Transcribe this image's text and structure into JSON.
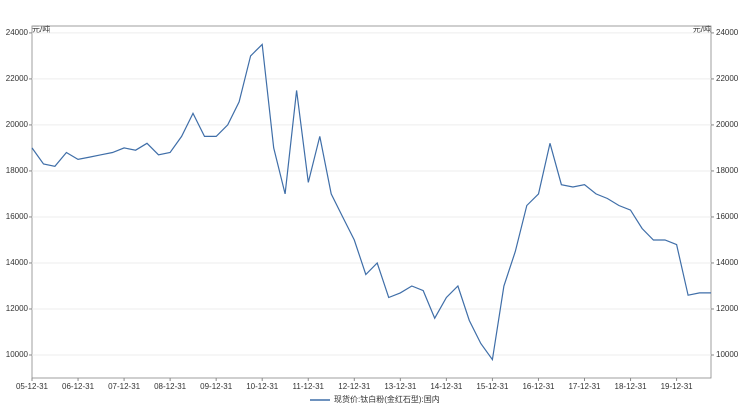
{
  "chart_data": {
    "type": "line",
    "y_unit": "元/吨",
    "y2_unit": "元/吨",
    "x": [
      "05-12-31",
      "06-03-31",
      "06-06-30",
      "06-09-30",
      "06-12-31",
      "07-03-31",
      "07-06-30",
      "07-09-30",
      "07-12-31",
      "08-03-31",
      "08-06-30",
      "08-09-30",
      "08-12-31",
      "09-03-31",
      "09-06-30",
      "09-09-30",
      "09-12-31",
      "10-03-31",
      "10-06-30",
      "10-09-30",
      "10-12-31",
      "11-03-31",
      "11-06-30",
      "11-09-30",
      "11-12-31",
      "12-03-31",
      "12-06-30",
      "12-09-30",
      "12-12-31",
      "13-03-31",
      "13-06-30",
      "13-09-30",
      "13-12-31",
      "14-03-31",
      "14-06-30",
      "14-09-30",
      "14-12-31",
      "15-03-31",
      "15-06-30",
      "15-09-30",
      "15-12-31",
      "16-03-31",
      "16-06-30",
      "16-09-30",
      "16-12-31",
      "17-03-31",
      "17-06-30",
      "17-09-30",
      "17-12-31",
      "18-03-31",
      "18-06-30",
      "18-09-30",
      "18-12-31",
      "19-03-31",
      "19-06-30",
      "19-09-30",
      "19-12-31",
      "20-03-31",
      "20-06-30",
      "20-09-30"
    ],
    "series": [
      {
        "name": "现货价:钛白粉(金红石型):国内",
        "color": "#3f6ea8",
        "values": [
          19000,
          18300,
          18200,
          18800,
          18500,
          18600,
          18700,
          18800,
          19000,
          18900,
          19200,
          18700,
          18800,
          19500,
          20500,
          19500,
          19500,
          20000,
          21000,
          23000,
          23500,
          19000,
          17000,
          21500,
          17500,
          19500,
          17000,
          16000,
          15000,
          13500,
          14000,
          12500,
          12700,
          13000,
          12800,
          11600,
          12500,
          13000,
          11500,
          10500,
          9800,
          13000,
          14500,
          16500,
          17000,
          19200,
          17400,
          17300,
          17400,
          17000,
          16800,
          16500,
          16300,
          15500,
          15000,
          15000,
          14800,
          12600,
          12700,
          12700
        ]
      }
    ],
    "xlim": [
      "05-12-31",
      "20-09-30"
    ],
    "xticks": [
      "05-12-31",
      "06-12-31",
      "07-12-31",
      "08-12-31",
      "09-12-31",
      "10-12-31",
      "11-12-31",
      "12-12-31",
      "13-12-31",
      "14-12-31",
      "15-12-31",
      "16-12-31",
      "17-12-31",
      "18-12-31",
      "19-12-31"
    ],
    "ylim": [
      9000,
      24300
    ],
    "yticks": [
      10000,
      12000,
      14000,
      16000,
      18000,
      20000,
      22000,
      24000
    ],
    "y2lim": [
      9000,
      24300
    ],
    "y2ticks": [
      10000,
      12000,
      14000,
      16000,
      18000,
      20000,
      22000,
      24000
    ],
    "grid": true
  }
}
